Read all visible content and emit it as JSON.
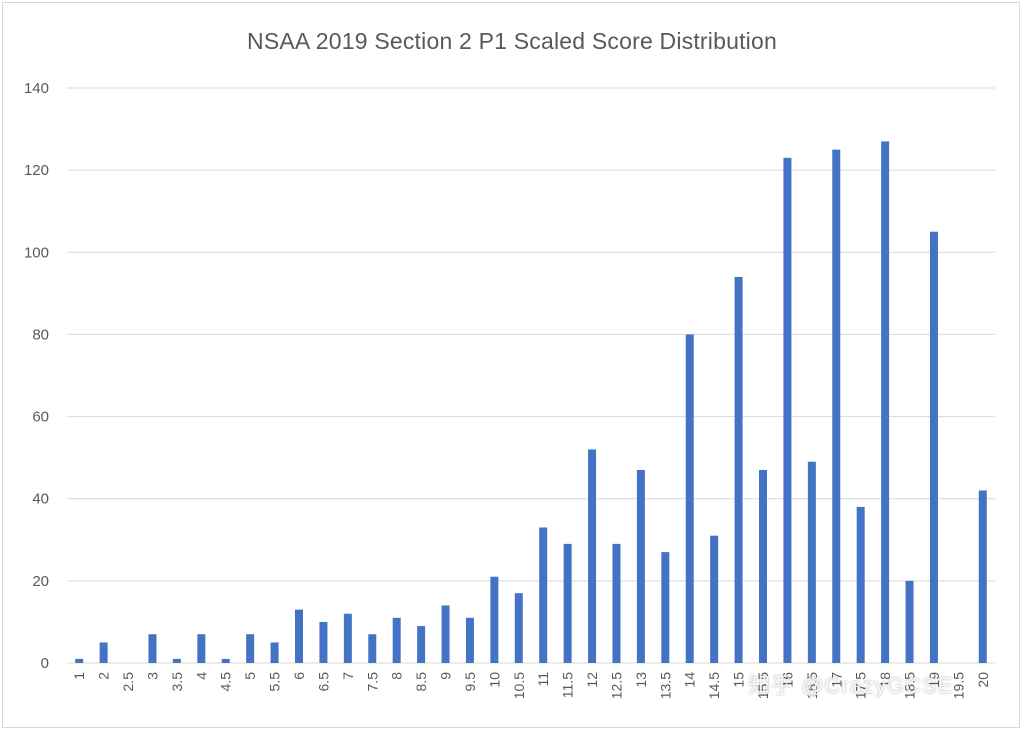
{
  "colors": {
    "bar": "#4472C4",
    "grid": "#D9D9D9",
    "text": "#595959"
  },
  "watermark": "知乎 @CrazyGCSE",
  "chart_data": {
    "type": "bar",
    "title": "NSAA 2019 Section 2 P1 Scaled Score Distribution",
    "xlabel": "",
    "ylabel": "",
    "ylim": [
      0,
      140
    ],
    "yticks": [
      0,
      20,
      40,
      60,
      80,
      100,
      120,
      140
    ],
    "grid": true,
    "categories": [
      "1",
      "2",
      "2.5",
      "3",
      "3.5",
      "4",
      "4.5",
      "5",
      "5.5",
      "6",
      "6.5",
      "7",
      "7.5",
      "8",
      "8.5",
      "9",
      "9.5",
      "10",
      "10.5",
      "11",
      "11.5",
      "12",
      "12.5",
      "13",
      "13.5",
      "14",
      "14.5",
      "15",
      "15.5",
      "16",
      "16.5",
      "17",
      "17.5",
      "18",
      "18.5",
      "19",
      "19.5",
      "20"
    ],
    "values": [
      1,
      5,
      0,
      7,
      1,
      7,
      1,
      7,
      5,
      13,
      10,
      12,
      7,
      11,
      9,
      14,
      11,
      21,
      17,
      33,
      29,
      52,
      29,
      47,
      27,
      80,
      31,
      94,
      47,
      123,
      49,
      125,
      38,
      127,
      20,
      105,
      0,
      42
    ]
  }
}
